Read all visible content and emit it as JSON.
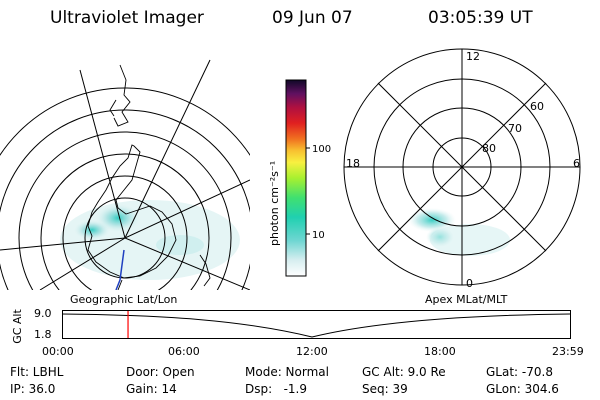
{
  "header": {
    "instrument": "Ultraviolet Imager",
    "date": "09 Jun 07",
    "time": "03:05:39 UT"
  },
  "colorbar": {
    "unit": "photon cm⁻²s⁻¹",
    "ticks": [
      "100",
      "10"
    ]
  },
  "polar_map": {
    "mlt_labels": [
      "12",
      "18",
      "6",
      "0"
    ],
    "lat_labels": [
      "60",
      "70",
      "80"
    ]
  },
  "footer_labels": {
    "geo": "Geographic Lat/Lon",
    "apex": "Apex MLat/MLT"
  },
  "timeline": {
    "axis_title": "GC Alt",
    "y_ticks": [
      "9.0",
      "1.8"
    ],
    "x_ticks": [
      "00:00",
      "06:00",
      "12:00",
      "18:00",
      "23:59"
    ],
    "current_time_fraction": 0.129
  },
  "info": {
    "row1": [
      "Flt: LBHL",
      "Door: Open",
      "Mode: Normal",
      "GC Alt: 9.0 Re",
      "GLat: -70.8"
    ],
    "row2": [
      "IP: 36.0",
      "Gain: 14",
      "Dsp:   -1.9",
      "Seq: 39",
      "GLon: 304.6"
    ]
  },
  "colors": {
    "marker": "#ff0000",
    "coastline": "#000000",
    "emission_low": "#bfe8e8",
    "emission_high": "#20c8c0"
  }
}
